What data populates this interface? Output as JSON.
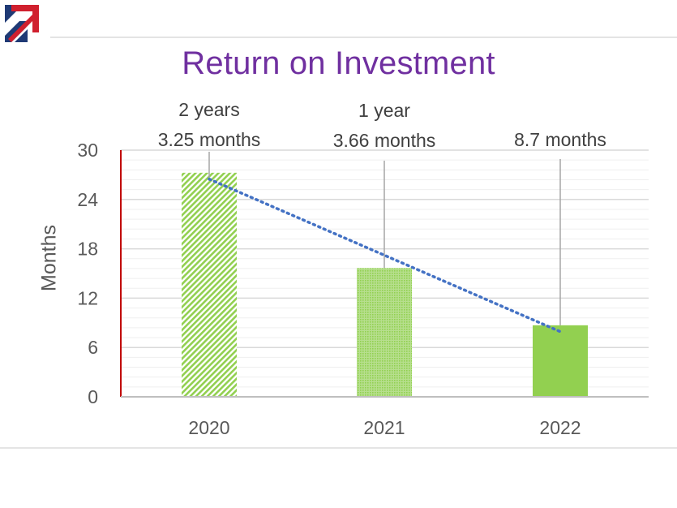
{
  "chart_data": {
    "type": "bar",
    "title": "Return on Investment",
    "ylabel": "Months",
    "xlabel": "",
    "categories": [
      "2020",
      "2021",
      "2022"
    ],
    "values": [
      27.25,
      15.66,
      8.7
    ],
    "ylim": [
      0,
      30
    ],
    "yticks": [
      0,
      6,
      12,
      18,
      24,
      30
    ],
    "annotations": [
      [
        "2 years",
        "3.25 months"
      ],
      [
        "1 year",
        "3.66 months"
      ],
      [
        "8.7 months"
      ]
    ],
    "trendline": "linear, dotted",
    "grid": true,
    "legend": "none"
  },
  "colors": {
    "bar": "#92d050",
    "title": "#7030a0",
    "trendline": "#4472c4",
    "axis_accent": "#c00000"
  },
  "logo": {
    "icon": "union-flag-arrow-logo"
  }
}
